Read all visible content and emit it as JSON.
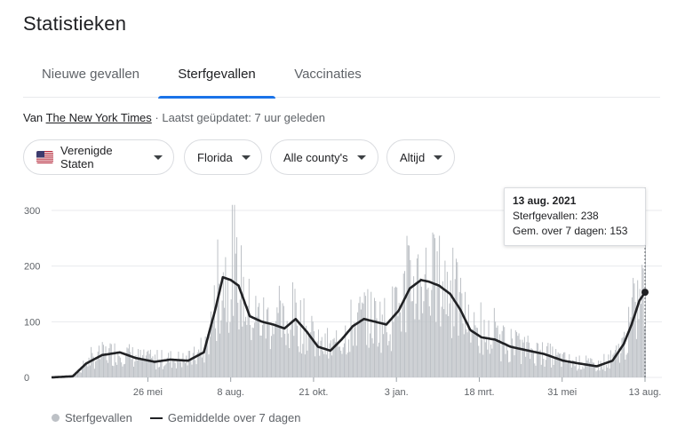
{
  "page": {
    "title": "Statistieken"
  },
  "tabs": [
    {
      "label": "Nieuwe gevallen",
      "active": false
    },
    {
      "label": "Sterfgevallen",
      "active": true
    },
    {
      "label": "Vaccinaties",
      "active": false
    }
  ],
  "source": {
    "prefix": "Van",
    "link": "The New York Times",
    "updated": "· Laatst geüpdatet: 7 uur geleden"
  },
  "filters": {
    "country": "Verenigde Staten",
    "state": "Florida",
    "county": "Alle county's",
    "period": "Altijd"
  },
  "colors": {
    "accent": "#1a73e8",
    "bars": "#bdc1c6",
    "avg_line": "#202124"
  },
  "tooltip": {
    "date": "13 aug. 2021",
    "deaths": "Sterfgevallen: 238",
    "avg": "Gem. over 7 dagen: 153"
  },
  "legend": {
    "bars": "Sterfgevallen",
    "line": "Gemiddelde over 7 dagen"
  },
  "chart_data": {
    "type": "bar",
    "y_ticks": [
      "0",
      "100",
      "200",
      "300"
    ],
    "ylim": [
      0,
      300
    ],
    "x_tick_labels": [
      "26 mei",
      "8 aug.",
      "21 okt.",
      "3 jan.",
      "18 mrt.",
      "31 mei",
      "13 aug."
    ],
    "x_tick_dates": [
      "2020-05-26",
      "2020-08-08",
      "2020-10-21",
      "2021-01-03",
      "2021-03-18",
      "2021-05-31",
      "2021-08-13"
    ],
    "x_range": [
      "2020-03-01",
      "2021-08-13"
    ],
    "grid": true,
    "avg_series": {
      "name": "Gemiddelde over 7 dagen",
      "dates": [
        "2020-03-01",
        "2020-03-20",
        "2020-04-01",
        "2020-04-15",
        "2020-05-01",
        "2020-05-15",
        "2020-06-01",
        "2020-06-15",
        "2020-07-01",
        "2020-07-15",
        "2020-07-25",
        "2020-08-01",
        "2020-08-08",
        "2020-08-15",
        "2020-08-25",
        "2020-09-05",
        "2020-09-15",
        "2020-09-25",
        "2020-10-05",
        "2020-10-15",
        "2020-10-25",
        "2020-11-05",
        "2020-11-15",
        "2020-11-25",
        "2020-12-05",
        "2020-12-15",
        "2020-12-25",
        "2021-01-05",
        "2021-01-15",
        "2021-01-25",
        "2021-02-01",
        "2021-02-10",
        "2021-02-20",
        "2021-03-01",
        "2021-03-10",
        "2021-03-20",
        "2021-04-01",
        "2021-04-15",
        "2021-05-01",
        "2021-05-15",
        "2021-06-01",
        "2021-06-15",
        "2021-07-01",
        "2021-07-15",
        "2021-07-25",
        "2021-08-01",
        "2021-08-08",
        "2021-08-13"
      ],
      "values": [
        0,
        2,
        25,
        40,
        45,
        35,
        28,
        32,
        30,
        45,
        120,
        180,
        175,
        165,
        110,
        100,
        95,
        88,
        105,
        82,
        55,
        48,
        68,
        92,
        105,
        100,
        95,
        120,
        160,
        175,
        172,
        165,
        150,
        122,
        85,
        72,
        68,
        55,
        48,
        42,
        30,
        25,
        20,
        30,
        60,
        95,
        138,
        153
      ]
    },
    "bars": {
      "name": "Sterfgevallen",
      "note": "daily values follow the 7-day average with daily noise"
    }
  }
}
